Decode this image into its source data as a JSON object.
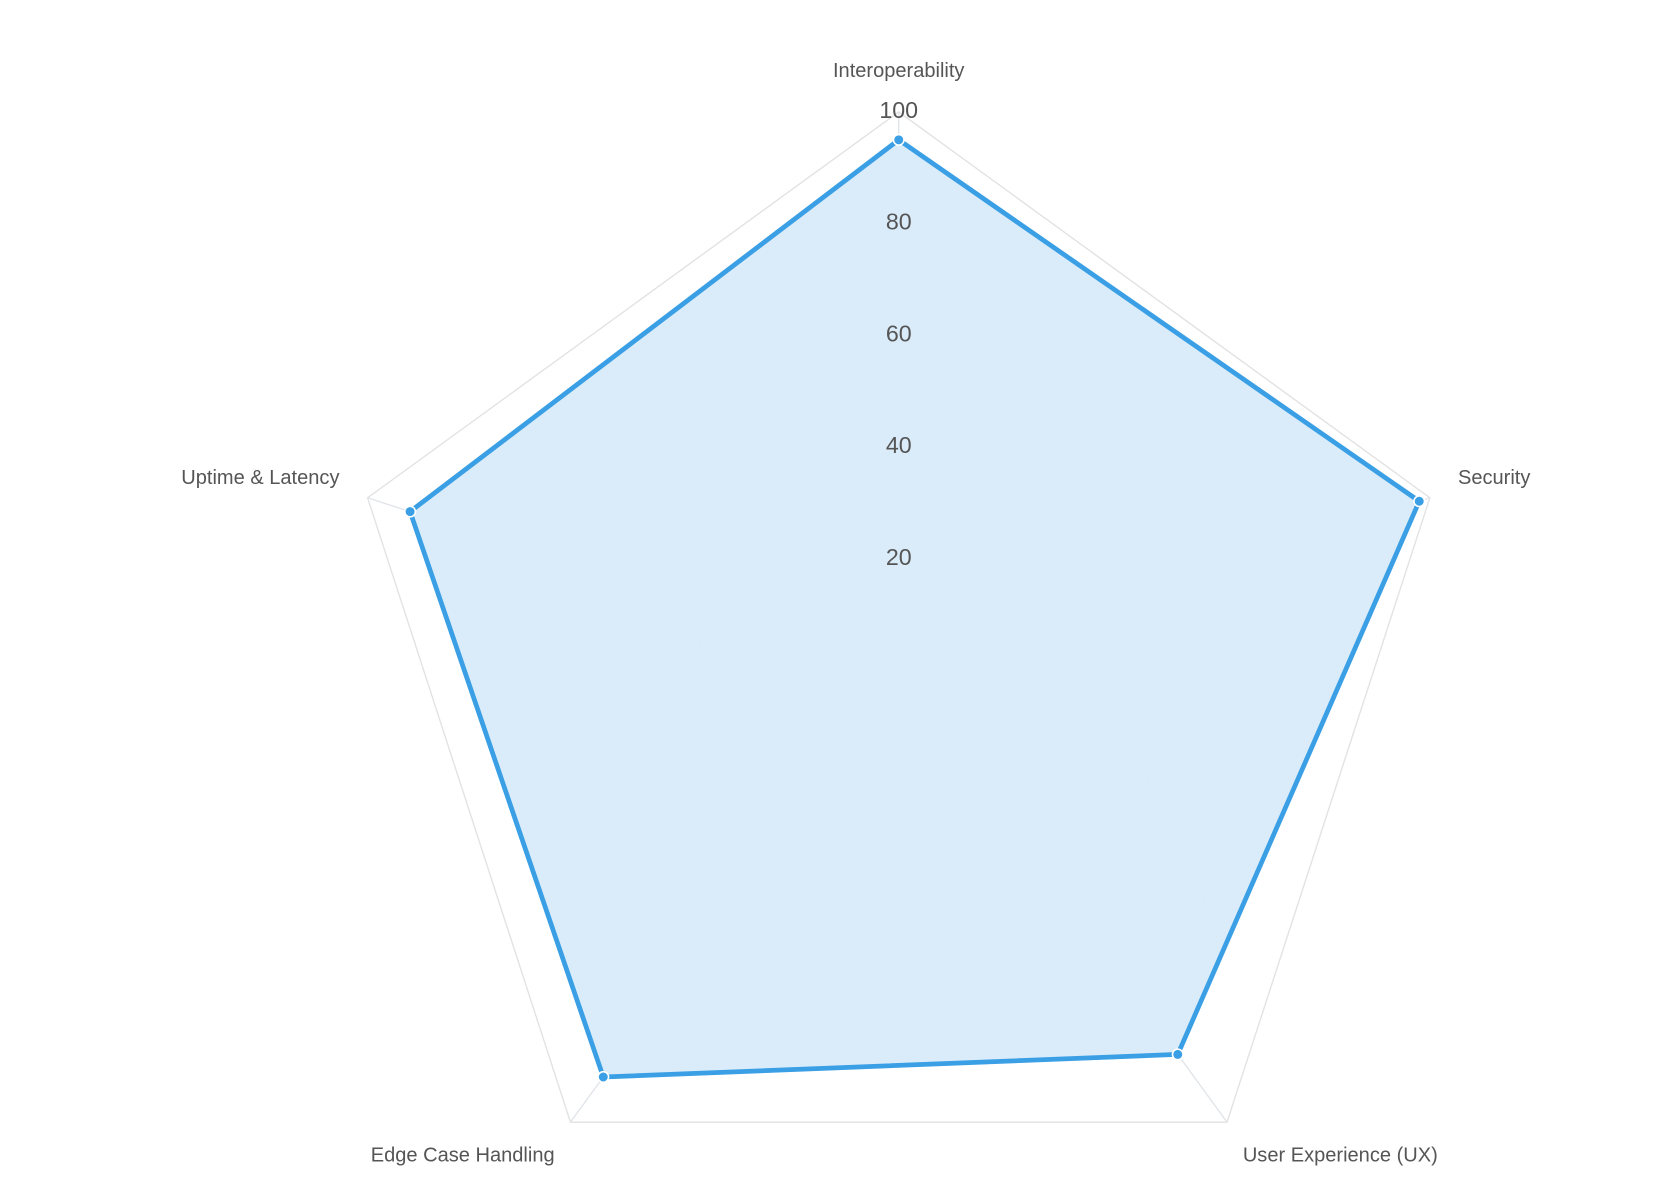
{
  "chart_data": {
    "type": "radar",
    "categories": [
      "Interoperability",
      "Security",
      "User Experience (UX)",
      "Edge Case Handling",
      "Uptime & Latency"
    ],
    "values": [
      95,
      98,
      85,
      90,
      92
    ],
    "color": "#3a9fe4",
    "fill": "#d8ebfa",
    "ylim": [
      0,
      100
    ],
    "yticks": [
      20,
      40,
      60,
      80,
      100
    ],
    "grid": true
  }
}
